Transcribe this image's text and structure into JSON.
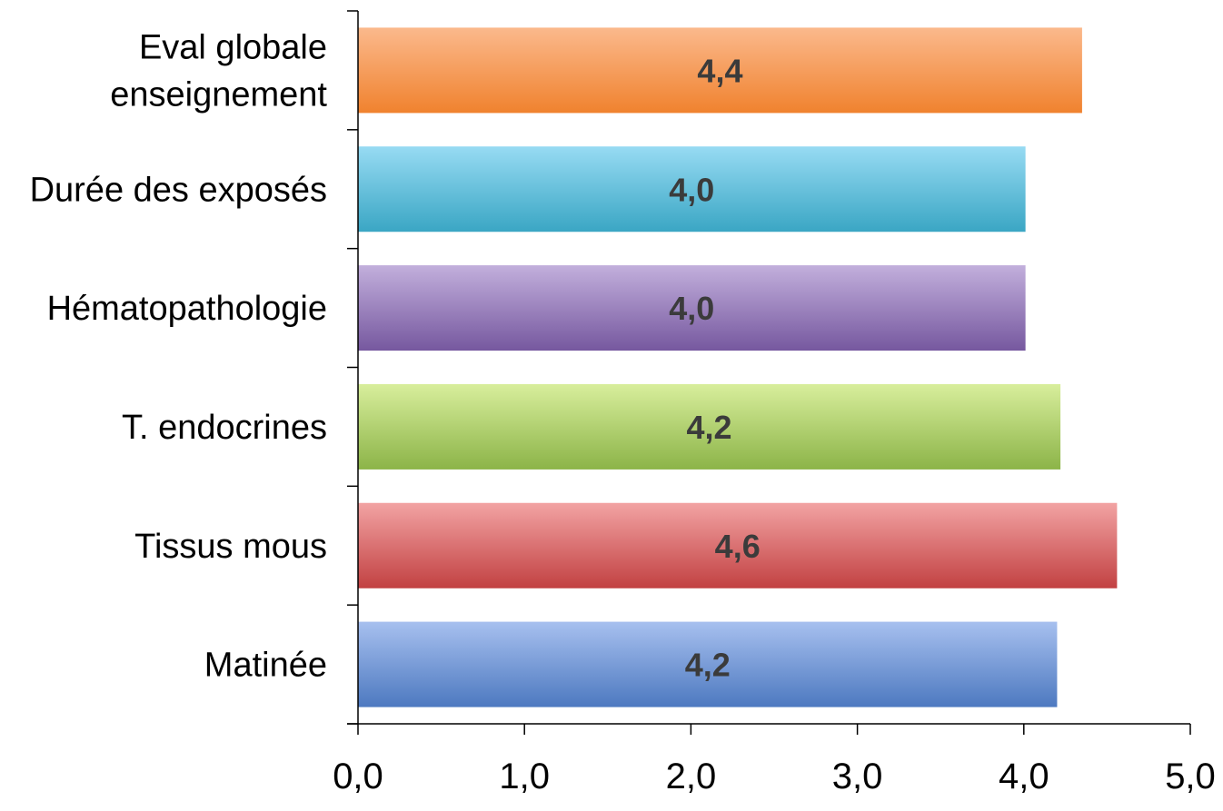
{
  "chart_data": {
    "type": "bar",
    "orientation": "horizontal",
    "categories": [
      "Eval globale enseignement",
      "Durée des exposés",
      "Hématopathologie",
      "T. endocrines",
      "Tissus mous",
      "Matinée"
    ],
    "category_lines": [
      [
        "Eval globale",
        "enseignement"
      ],
      [
        "Durée des exposés"
      ],
      [
        "Hématopathologie"
      ],
      [
        "T. endocrines"
      ],
      [
        "Tissus mous"
      ],
      [
        "Matinée"
      ]
    ],
    "values": [
      4.35,
      4.01,
      4.01,
      4.22,
      4.56,
      4.2
    ],
    "data_labels": [
      "4,4",
      "4,0",
      "4,0",
      "4,2",
      "4,6",
      "4,2"
    ],
    "colors": [
      {
        "top": "#fbb98c",
        "bottom": "#f0822e"
      },
      {
        "top": "#97dbf3",
        "bottom": "#3aa6c4"
      },
      {
        "top": "#c2afdc",
        "bottom": "#76589f"
      },
      {
        "top": "#d8ee9c",
        "bottom": "#8cb448"
      },
      {
        "top": "#f2a3a3",
        "bottom": "#c24142"
      },
      {
        "top": "#a7c0ef",
        "bottom": "#4d79c0"
      }
    ],
    "xlim": [
      0,
      5
    ],
    "xticks": [
      0,
      1,
      2,
      3,
      4,
      5
    ],
    "xtick_labels": [
      "0,0",
      "1,0",
      "2,0",
      "3,0",
      "4,0",
      "5,0"
    ],
    "title": "",
    "xlabel": "",
    "ylabel": "",
    "grid": false,
    "legend": "none"
  }
}
